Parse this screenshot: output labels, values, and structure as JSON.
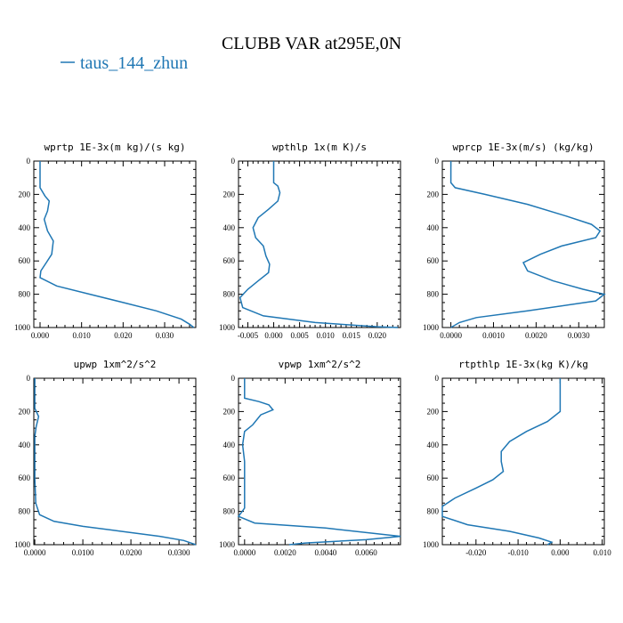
{
  "title": "CLUBB VAR at295E,0N",
  "legend": {
    "label": "taus_144_zhun",
    "color": "#1f77b4"
  },
  "chart_data": [
    {
      "type": "line",
      "title": "wprtp  1E-3x(m kg)/(s kg)",
      "xlim": [
        -0.0015,
        0.0375
      ],
      "ylim": [
        1000,
        0
      ],
      "xticks": [
        0.0,
        0.01,
        0.02,
        0.03
      ],
      "xtick_labels": [
        "0.000",
        "0.010",
        "0.020",
        "0.030"
      ],
      "yticks": [
        0,
        200,
        400,
        600,
        800,
        1000
      ],
      "ytick_labels": [
        "0",
        "200",
        "400",
        "600",
        "800",
        "1000"
      ],
      "series": [
        {
          "points": [
            [
              0.0,
              0
            ],
            [
              0.0,
              160
            ],
            [
              0.0012,
              210
            ],
            [
              0.0022,
              240
            ],
            [
              0.0018,
              300
            ],
            [
              0.001,
              350
            ],
            [
              0.0018,
              420
            ],
            [
              0.0032,
              480
            ],
            [
              0.0028,
              560
            ],
            [
              0.0015,
              610
            ],
            [
              0.0002,
              660
            ],
            [
              0.0,
              700
            ],
            [
              0.004,
              750
            ],
            [
              0.012,
              800
            ],
            [
              0.02,
              850
            ],
            [
              0.028,
              900
            ],
            [
              0.034,
              950
            ],
            [
              0.036,
              980
            ],
            [
              0.037,
              1000
            ]
          ]
        }
      ]
    },
    {
      "type": "line",
      "title": "wpthlp  1x(m K)/s",
      "xlim": [
        -0.0068,
        0.0245
      ],
      "ylim": [
        1000,
        0
      ],
      "xticks": [
        -0.005,
        0.0,
        0.005,
        0.01,
        0.015,
        0.02
      ],
      "xtick_labels": [
        "-0.005",
        "0.000",
        "0.005",
        "0.010",
        "0.015",
        "0.020"
      ],
      "yticks": [
        0,
        200,
        400,
        600,
        800,
        1000
      ],
      "ytick_labels": [
        "0",
        "200",
        "400",
        "600",
        "800",
        "1000"
      ],
      "series": [
        {
          "points": [
            [
              0.0,
              0
            ],
            [
              0.0,
              130
            ],
            [
              0.0008,
              150
            ],
            [
              0.0012,
              190
            ],
            [
              0.0008,
              240
            ],
            [
              -0.001,
              290
            ],
            [
              -0.003,
              340
            ],
            [
              -0.004,
              400
            ],
            [
              -0.0035,
              460
            ],
            [
              -0.002,
              510
            ],
            [
              -0.0015,
              570
            ],
            [
              -0.0008,
              620
            ],
            [
              -0.001,
              670
            ],
            [
              -0.003,
              720
            ],
            [
              -0.005,
              770
            ],
            [
              -0.0065,
              820
            ],
            [
              -0.006,
              880
            ],
            [
              -0.002,
              930
            ],
            [
              0.008,
              970
            ],
            [
              0.02,
              995
            ],
            [
              0.024,
              1000
            ]
          ]
        }
      ]
    },
    {
      "type": "line",
      "title": "wprcp  1E-3x(m/s) (kg/kg)",
      "xlim": [
        -0.0002,
        0.0036
      ],
      "ylim": [
        1000,
        0
      ],
      "xticks": [
        0.0,
        0.001,
        0.002,
        0.003
      ],
      "xtick_labels": [
        "0.0000",
        "0.0010",
        "0.0020",
        "0.0030"
      ],
      "yticks": [
        0,
        200,
        400,
        600,
        800,
        1000
      ],
      "ytick_labels": [
        "0",
        "200",
        "400",
        "600",
        "800",
        "1000"
      ],
      "series": [
        {
          "points": [
            [
              0.0,
              0
            ],
            [
              0.0,
              130
            ],
            [
              0.0001,
              160
            ],
            [
              0.0008,
              200
            ],
            [
              0.0018,
              260
            ],
            [
              0.0027,
              330
            ],
            [
              0.0033,
              380
            ],
            [
              0.0035,
              420
            ],
            [
              0.0034,
              460
            ],
            [
              0.0026,
              510
            ],
            [
              0.0021,
              560
            ],
            [
              0.0017,
              610
            ],
            [
              0.0018,
              660
            ],
            [
              0.0024,
              720
            ],
            [
              0.0031,
              770
            ],
            [
              0.0036,
              800
            ],
            [
              0.0034,
              840
            ],
            [
              0.0018,
              900
            ],
            [
              0.0006,
              940
            ],
            [
              0.0002,
              970
            ],
            [
              0.0,
              1000
            ]
          ]
        }
      ]
    },
    {
      "type": "line",
      "title": "upwp  1xm^2/s^2",
      "xlim": [
        -0.0002,
        0.0335
      ],
      "ylim": [
        1000,
        0
      ],
      "xticks": [
        0.0,
        0.01,
        0.02,
        0.03
      ],
      "xtick_labels": [
        "0.0000",
        "0.0100",
        "0.0200",
        "0.0300"
      ],
      "yticks": [
        0,
        200,
        400,
        600,
        800,
        1000
      ],
      "ytick_labels": [
        "0",
        "200",
        "400",
        "600",
        "800",
        "1000"
      ],
      "series": [
        {
          "points": [
            [
              0.0,
              0
            ],
            [
              0.0,
              180
            ],
            [
              0.0008,
              230
            ],
            [
              0.0003,
              290
            ],
            [
              0.0,
              350
            ],
            [
              0.0,
              600
            ],
            [
              0.0002,
              750
            ],
            [
              0.001,
              820
            ],
            [
              0.004,
              860
            ],
            [
              0.01,
              890
            ],
            [
              0.018,
              920
            ],
            [
              0.026,
              950
            ],
            [
              0.031,
              975
            ],
            [
              0.033,
              995
            ],
            [
              0.0335,
              1000
            ]
          ]
        }
      ]
    },
    {
      "type": "line",
      "title": "vpwp  1xm^2/s^2",
      "xlim": [
        -0.0003,
        0.0077
      ],
      "ylim": [
        1000,
        0
      ],
      "xticks": [
        0.0,
        0.002,
        0.004,
        0.006
      ],
      "xtick_labels": [
        "0.0000",
        "0.0020",
        "0.0040",
        "0.0060"
      ],
      "yticks": [
        0,
        200,
        400,
        600,
        800,
        1000
      ],
      "ytick_labels": [
        "0",
        "200",
        "400",
        "600",
        "800",
        "1000"
      ],
      "series": [
        {
          "points": [
            [
              0.0,
              0
            ],
            [
              0.0,
              120
            ],
            [
              0.0007,
              140
            ],
            [
              0.0012,
              160
            ],
            [
              0.0014,
              190
            ],
            [
              0.0008,
              220
            ],
            [
              0.0004,
              280
            ],
            [
              0.0,
              320
            ],
            [
              -0.0001,
              400
            ],
            [
              0.0,
              500
            ],
            [
              0.0,
              650
            ],
            [
              0.0,
              780
            ],
            [
              -0.0003,
              830
            ],
            [
              0.0005,
              870
            ],
            [
              0.004,
              900
            ],
            [
              0.0077,
              950
            ],
            [
              0.006,
              970
            ],
            [
              0.003,
              990
            ],
            [
              0.0022,
              1000
            ]
          ]
        }
      ]
    },
    {
      "type": "line",
      "title": "rtpthlp  1E-3x(kg K)/kg",
      "xlim": [
        -0.028,
        0.0105
      ],
      "ylim": [
        1000,
        0
      ],
      "xticks": [
        -0.02,
        -0.01,
        0.0,
        0.01
      ],
      "xtick_labels": [
        "-0.020",
        "-0.010",
        "0.000",
        "0.010"
      ],
      "yticks": [
        0,
        200,
        400,
        600,
        800,
        1000
      ],
      "ytick_labels": [
        "0",
        "200",
        "400",
        "600",
        "800",
        "1000"
      ],
      "series": [
        {
          "points": [
            [
              0.0,
              0
            ],
            [
              0.0,
              200
            ],
            [
              -0.003,
              260
            ],
            [
              -0.008,
              320
            ],
            [
              -0.012,
              380
            ],
            [
              -0.014,
              440
            ],
            [
              -0.014,
              500
            ],
            [
              -0.0135,
              560
            ],
            [
              -0.016,
              610
            ],
            [
              -0.02,
              660
            ],
            [
              -0.025,
              720
            ],
            [
              -0.028,
              770
            ],
            [
              -0.028,
              830
            ],
            [
              -0.022,
              880
            ],
            [
              -0.012,
              920
            ],
            [
              -0.005,
              960
            ],
            [
              -0.002,
              985
            ],
            [
              -0.003,
              1000
            ]
          ]
        }
      ]
    }
  ]
}
